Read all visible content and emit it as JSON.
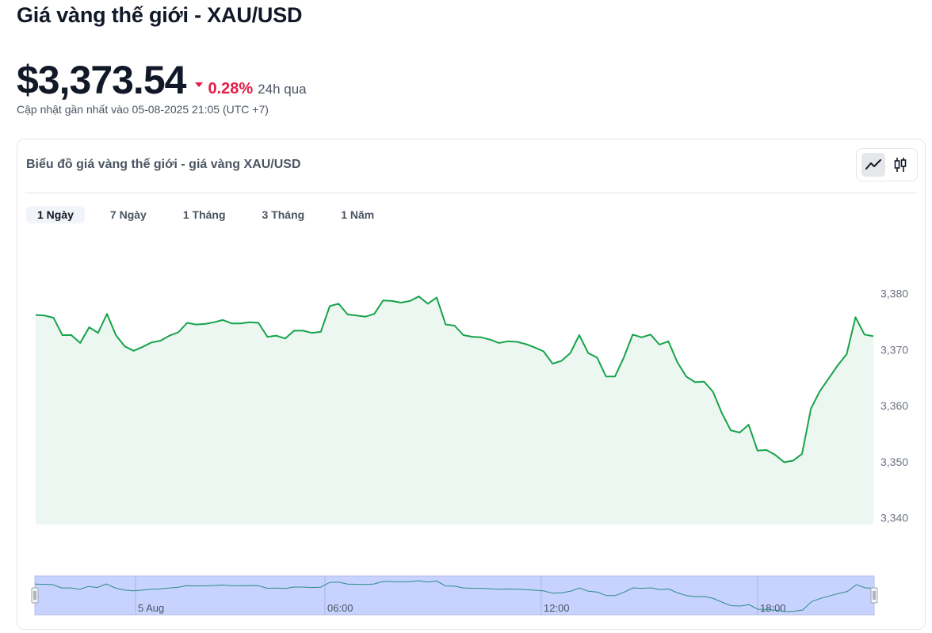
{
  "page": {
    "title": "Giá vàng thế giới - XAU/USD",
    "price": "$3,373.54",
    "change_pct": "0.28%",
    "change_period": "24h qua",
    "change_direction": "down",
    "updated": "Cập nhật gần nhất vào 05-08-2025 21:05 (UTC +7)"
  },
  "card": {
    "title": "Biểu đồ giá vàng thế giới - giá vàng XAU/USD",
    "view_toggle": [
      {
        "icon": "line-chart-icon",
        "active": true
      },
      {
        "icon": "candlestick-icon",
        "active": false
      }
    ],
    "tabs": [
      {
        "label": "1 Ngày",
        "active": true
      },
      {
        "label": "7 Ngày",
        "active": false
      },
      {
        "label": "1 Tháng",
        "active": false
      },
      {
        "label": "3 Tháng",
        "active": false
      },
      {
        "label": "1 Năm",
        "active": false
      }
    ]
  },
  "colors": {
    "line": "#16a34a",
    "area_fill": "#edf7f1",
    "negative": "#e11d48",
    "navigator_fill": "#c7d2fe",
    "navigator_line": "#2a8c86"
  },
  "chart_data": {
    "type": "area",
    "title": "",
    "xlabel": "",
    "ylabel": "",
    "ylim": [
      3340,
      3382
    ],
    "y_ticks": [
      "3,380",
      "3,370",
      "3,360",
      "3,350",
      "3,340"
    ],
    "y_tick_values": [
      3380,
      3370,
      3360,
      3350,
      3340
    ],
    "y_axis_position": "right",
    "navigator_labels": [
      "5 Aug",
      "06:00",
      "12:00",
      "18:00"
    ],
    "series": [
      {
        "values": [
          3376.2,
          3376.1,
          3375.7,
          3372.6,
          3372.6,
          3371.2,
          3374.0,
          3373.0,
          3376.4,
          3372.6,
          3370.6,
          3369.8,
          3370.5,
          3371.3,
          3371.6,
          3372.5,
          3373.1,
          3374.8,
          3374.5,
          3374.6,
          3374.9,
          3375.3,
          3374.7,
          3374.7,
          3374.9,
          3374.8,
          3372.3,
          3372.5,
          3372.0,
          3373.4,
          3373.4,
          3373.0,
          3373.2,
          3377.8,
          3378.2,
          3376.3,
          3376.1,
          3375.9,
          3376.4,
          3378.8,
          3378.7,
          3378.4,
          3378.7,
          3379.5,
          3378.2,
          3379.3,
          3374.5,
          3374.3,
          3372.6,
          3372.3,
          3372.2,
          3371.8,
          3371.2,
          3371.5,
          3371.4,
          3371.0,
          3370.4,
          3369.7,
          3367.5,
          3368.0,
          3369.4,
          3372.6,
          3369.4,
          3368.6,
          3365.2,
          3365.2,
          3368.6,
          3372.7,
          3372.2,
          3372.7,
          3370.9,
          3371.5,
          3367.8,
          3365.2,
          3364.2,
          3364.3,
          3362.5,
          3358.7,
          3355.6,
          3355.2,
          3356.6,
          3352.0,
          3352.1,
          3351.2,
          3349.9,
          3350.2,
          3351.4,
          3359.5,
          3362.6,
          3364.9,
          3367.2,
          3369.2,
          3375.8,
          3372.7,
          3372.4
        ]
      }
    ]
  }
}
